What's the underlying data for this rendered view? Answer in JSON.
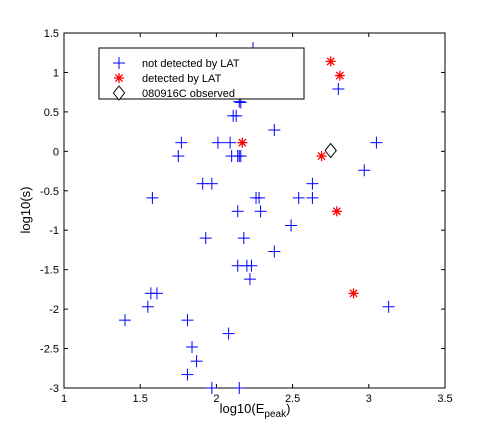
{
  "chart_data": {
    "type": "scatter",
    "xlabel": "log10(E",
    "xlabel_sub": "peak",
    "xlabel_close": ")",
    "ylabel": "log10(s)",
    "xlim": [
      1,
      3.5
    ],
    "ylim": [
      -3,
      1.5
    ],
    "xticks": [
      1,
      1.5,
      2,
      2.5,
      3,
      3.5
    ],
    "yticks": [
      -3,
      -2.5,
      -2,
      -1.5,
      -1,
      -0.5,
      0,
      0.5,
      1,
      1.5
    ],
    "grid": false,
    "legend_position": "top-left",
    "series": [
      {
        "name": "not detected by LAT",
        "marker": "plus",
        "color": "#0000ff",
        "points": [
          [
            2.24,
            1.31
          ],
          [
            2.17,
            0.79
          ],
          [
            2.16,
            0.62
          ],
          [
            2.15,
            0.63
          ],
          [
            2.8,
            0.79
          ],
          [
            2.11,
            0.45
          ],
          [
            2.13,
            0.45
          ],
          [
            2.38,
            0.27
          ],
          [
            3.05,
            0.11
          ],
          [
            1.77,
            0.11
          ],
          [
            2.01,
            0.11
          ],
          [
            2.09,
            0.11
          ],
          [
            1.75,
            -0.06
          ],
          [
            2.1,
            -0.06
          ],
          [
            2.14,
            -0.06
          ],
          [
            2.15,
            -0.06
          ],
          [
            2.16,
            -0.06
          ],
          [
            2.97,
            -0.24
          ],
          [
            1.91,
            -0.41
          ],
          [
            1.97,
            -0.41
          ],
          [
            2.63,
            -0.41
          ],
          [
            1.58,
            -0.59
          ],
          [
            2.26,
            -0.59
          ],
          [
            2.28,
            -0.59
          ],
          [
            2.54,
            -0.59
          ],
          [
            2.63,
            -0.59
          ],
          [
            2.14,
            -0.76
          ],
          [
            2.29,
            -0.76
          ],
          [
            2.49,
            -0.94
          ],
          [
            1.93,
            -1.1
          ],
          [
            2.18,
            -1.1
          ],
          [
            2.38,
            -1.27
          ],
          [
            2.14,
            -1.45
          ],
          [
            2.2,
            -1.45
          ],
          [
            2.23,
            -1.45
          ],
          [
            2.22,
            -1.62
          ],
          [
            1.57,
            -1.8
          ],
          [
            1.61,
            -1.8
          ],
          [
            1.55,
            -1.97
          ],
          [
            3.13,
            -1.97
          ],
          [
            1.4,
            -2.14
          ],
          [
            1.81,
            -2.14
          ],
          [
            2.08,
            -2.31
          ],
          [
            1.84,
            -2.48
          ],
          [
            1.87,
            -2.66
          ],
          [
            1.81,
            -2.83
          ],
          [
            1.97,
            -3.0
          ],
          [
            2.15,
            -3.0
          ]
        ]
      },
      {
        "name": "detected by LAT",
        "marker": "asterisk",
        "color": "#ff0000",
        "points": [
          [
            2.75,
            1.14
          ],
          [
            2.81,
            0.96
          ],
          [
            2.22,
            0.79
          ],
          [
            2.42,
            0.79
          ],
          [
            2.17,
            0.11
          ],
          [
            2.69,
            -0.06
          ],
          [
            2.79,
            -0.76
          ],
          [
            2.9,
            -1.8
          ]
        ]
      },
      {
        "name": "080916C observed",
        "marker": "diamond",
        "color": "#000000",
        "points": [
          [
            2.75,
            0.01
          ]
        ]
      }
    ]
  }
}
